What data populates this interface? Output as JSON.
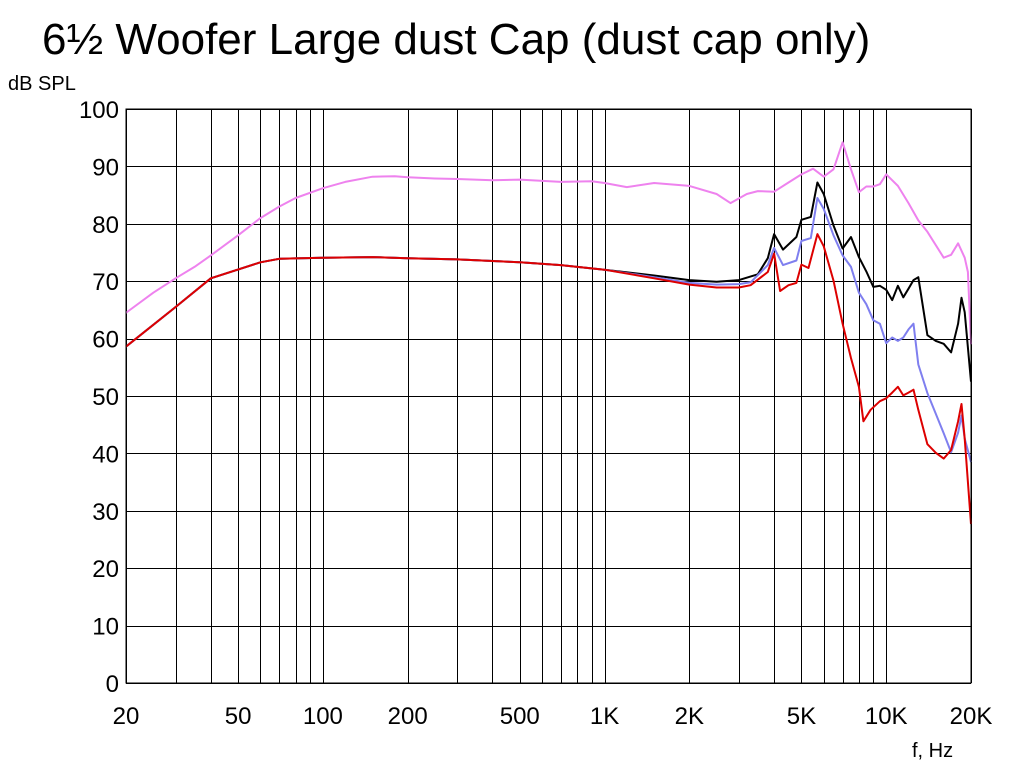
{
  "chart_data": {
    "type": "line",
    "title": "6½ Woofer Large dust Cap (dust cap only)",
    "ylabel": "dB SPL",
    "xlabel": "f, Hz",
    "xscale": "log",
    "xlim": [
      20,
      20000
    ],
    "ylim": [
      0,
      100
    ],
    "grid": true,
    "yticks": [
      0,
      10,
      20,
      30,
      40,
      50,
      60,
      70,
      80,
      90,
      100
    ],
    "xtick_labels": [
      {
        "value": 20,
        "label": "20"
      },
      {
        "value": 50,
        "label": "50"
      },
      {
        "value": 100,
        "label": "100"
      },
      {
        "value": 200,
        "label": "200"
      },
      {
        "value": 500,
        "label": "500"
      },
      {
        "value": 1000,
        "label": "1K"
      },
      {
        "value": 2000,
        "label": "2K"
      },
      {
        "value": 5000,
        "label": "5K"
      },
      {
        "value": 10000,
        "label": "10K"
      },
      {
        "value": 20000,
        "label": "20K"
      }
    ],
    "xgrid": [
      20,
      30,
      40,
      50,
      60,
      70,
      80,
      90,
      100,
      200,
      300,
      400,
      500,
      600,
      700,
      800,
      900,
      1000,
      2000,
      3000,
      4000,
      5000,
      6000,
      7000,
      8000,
      9000,
      10000,
      20000
    ],
    "series": [
      {
        "color": "#ee82ee",
        "points": [
          [
            20,
            64.5
          ],
          [
            25,
            68
          ],
          [
            30,
            70.5
          ],
          [
            35,
            72.5
          ],
          [
            40,
            74.5
          ],
          [
            50,
            78
          ],
          [
            60,
            81
          ],
          [
            70,
            83
          ],
          [
            80,
            84.5
          ],
          [
            100,
            86.2
          ],
          [
            120,
            87.3
          ],
          [
            150,
            88.2
          ],
          [
            180,
            88.3
          ],
          [
            200,
            88.1
          ],
          [
            250,
            87.9
          ],
          [
            300,
            87.8
          ],
          [
            400,
            87.6
          ],
          [
            500,
            87.7
          ],
          [
            700,
            87.3
          ],
          [
            900,
            87.4
          ],
          [
            1000,
            87.1
          ],
          [
            1200,
            86.4
          ],
          [
            1500,
            87.1
          ],
          [
            2000,
            86.6
          ],
          [
            2500,
            85.2
          ],
          [
            2800,
            83.6
          ],
          [
            3200,
            85.2
          ],
          [
            3500,
            85.7
          ],
          [
            4000,
            85.6
          ],
          [
            4500,
            87.2
          ],
          [
            5000,
            88.6
          ],
          [
            5500,
            89.6
          ],
          [
            6000,
            88.2
          ],
          [
            6500,
            89.5
          ],
          [
            7000,
            94.2
          ],
          [
            7500,
            89.5
          ],
          [
            8000,
            85.5
          ],
          [
            8500,
            86.5
          ],
          [
            9000,
            86.5
          ],
          [
            9500,
            86.9
          ],
          [
            10000,
            88.6
          ],
          [
            11000,
            86.6
          ],
          [
            12000,
            83.6
          ],
          [
            13000,
            80.6
          ],
          [
            14000,
            78.6
          ],
          [
            16000,
            74.1
          ],
          [
            17000,
            74.6
          ],
          [
            18000,
            76.6
          ],
          [
            19000,
            74.1
          ],
          [
            19500,
            71.6
          ],
          [
            20000,
            59
          ]
        ]
      },
      {
        "color": "#000000",
        "points": [
          [
            20,
            58.6
          ],
          [
            30,
            65.5
          ],
          [
            40,
            70.5
          ],
          [
            60,
            73.3
          ],
          [
            70,
            73.9
          ],
          [
            100,
            74.1
          ],
          [
            150,
            74.2
          ],
          [
            200,
            74
          ],
          [
            300,
            73.8
          ],
          [
            500,
            73.3
          ],
          [
            700,
            72.8
          ],
          [
            1000,
            72
          ],
          [
            1500,
            71
          ],
          [
            2000,
            70.2
          ],
          [
            2500,
            69.9
          ],
          [
            3000,
            70.2
          ],
          [
            3500,
            71.2
          ],
          [
            3800,
            74
          ],
          [
            4000,
            78.2
          ],
          [
            4300,
            75.5
          ],
          [
            4800,
            77.7
          ],
          [
            5000,
            80.7
          ],
          [
            5400,
            81.2
          ],
          [
            5700,
            87.2
          ],
          [
            6000,
            85.2
          ],
          [
            6500,
            79.7
          ],
          [
            7000,
            75.7
          ],
          [
            7500,
            77.7
          ],
          [
            8000,
            74.2
          ],
          [
            8500,
            71.7
          ],
          [
            9000,
            69
          ],
          [
            9500,
            69.2
          ],
          [
            10000,
            68.5
          ],
          [
            10500,
            66.7
          ],
          [
            11000,
            69.2
          ],
          [
            11500,
            67.2
          ],
          [
            12000,
            68.7
          ],
          [
            12500,
            70.2
          ],
          [
            13000,
            70.7
          ],
          [
            14000,
            60.6
          ],
          [
            15000,
            59.6
          ],
          [
            16000,
            59.1
          ],
          [
            17000,
            57.6
          ],
          [
            18000,
            62.6
          ],
          [
            18500,
            67.1
          ],
          [
            19000,
            64.6
          ],
          [
            20000,
            52.5
          ]
        ]
      },
      {
        "color": "#7f7fef",
        "points": [
          [
            20,
            58.6
          ],
          [
            30,
            65.5
          ],
          [
            40,
            70.5
          ],
          [
            60,
            73.3
          ],
          [
            70,
            73.9
          ],
          [
            100,
            74.1
          ],
          [
            150,
            74.2
          ],
          [
            200,
            74
          ],
          [
            300,
            73.8
          ],
          [
            500,
            73.3
          ],
          [
            700,
            72.8
          ],
          [
            1000,
            72
          ],
          [
            1500,
            70.7
          ],
          [
            2000,
            69.7
          ],
          [
            2500,
            69.4
          ],
          [
            3000,
            69.5
          ],
          [
            3300,
            69.8
          ],
          [
            3800,
            72.8
          ],
          [
            4000,
            75.8
          ],
          [
            4300,
            72.8
          ],
          [
            4800,
            73.6
          ],
          [
            5000,
            77
          ],
          [
            5400,
            77.5
          ],
          [
            5700,
            84.5
          ],
          [
            6000,
            82.6
          ],
          [
            6500,
            78
          ],
          [
            7000,
            74.5
          ],
          [
            7500,
            72.5
          ],
          [
            8000,
            68
          ],
          [
            8500,
            66
          ],
          [
            9000,
            63.2
          ],
          [
            9500,
            62.6
          ],
          [
            10000,
            59.2
          ],
          [
            10500,
            60.2
          ],
          [
            11000,
            59.6
          ],
          [
            11500,
            60.2
          ],
          [
            12000,
            61.6
          ],
          [
            12500,
            62.6
          ],
          [
            13000,
            55.5
          ],
          [
            14000,
            50.5
          ],
          [
            16000,
            43.5
          ],
          [
            17000,
            40.2
          ],
          [
            18000,
            43.6
          ],
          [
            18500,
            46.6
          ],
          [
            19000,
            42.6
          ],
          [
            20000,
            38.5
          ]
        ]
      },
      {
        "color": "#dd0000",
        "points": [
          [
            20,
            58.6
          ],
          [
            30,
            65.5
          ],
          [
            40,
            70.5
          ],
          [
            60,
            73.3
          ],
          [
            70,
            73.9
          ],
          [
            100,
            74.1
          ],
          [
            150,
            74.2
          ],
          [
            200,
            74
          ],
          [
            300,
            73.8
          ],
          [
            500,
            73.3
          ],
          [
            700,
            72.8
          ],
          [
            1000,
            72
          ],
          [
            1500,
            70.5
          ],
          [
            2000,
            69.4
          ],
          [
            2500,
            68.9
          ],
          [
            3000,
            68.9
          ],
          [
            3300,
            69.3
          ],
          [
            3800,
            71.6
          ],
          [
            4000,
            74.8
          ],
          [
            4200,
            68.3
          ],
          [
            4500,
            69.3
          ],
          [
            4800,
            69.7
          ],
          [
            5000,
            72.9
          ],
          [
            5300,
            72.3
          ],
          [
            5700,
            78.2
          ],
          [
            6000,
            76.1
          ],
          [
            6500,
            70.1
          ],
          [
            7000,
            62.6
          ],
          [
            7500,
            56.6
          ],
          [
            8000,
            51.6
          ],
          [
            8300,
            45.6
          ],
          [
            8800,
            47.6
          ],
          [
            9500,
            49.1
          ],
          [
            10000,
            49.6
          ],
          [
            10500,
            50.6
          ],
          [
            11000,
            51.6
          ],
          [
            11500,
            50.1
          ],
          [
            12000,
            50.6
          ],
          [
            12500,
            51.1
          ],
          [
            13000,
            47.6
          ],
          [
            14000,
            41.6
          ],
          [
            15000,
            40.1
          ],
          [
            16000,
            39.1
          ],
          [
            17000,
            40.6
          ],
          [
            18000,
            45.6
          ],
          [
            18500,
            48.6
          ],
          [
            19000,
            42.6
          ],
          [
            20000,
            27.7
          ]
        ]
      }
    ]
  }
}
